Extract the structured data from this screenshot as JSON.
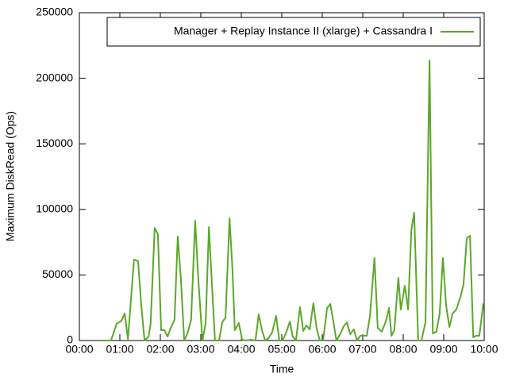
{
  "chart_data": {
    "type": "line",
    "xlabel": "Time",
    "ylabel": "Maximum DiskRead (Ops)",
    "x": [
      0.51,
      0.67,
      0.78,
      0.92,
      1.04,
      1.12,
      1.2,
      1.35,
      1.45,
      1.53,
      1.61,
      1.71,
      1.76,
      1.86,
      1.94,
      2.02,
      2.1,
      2.18,
      2.25,
      2.35,
      2.43,
      2.51,
      2.59,
      2.67,
      2.76,
      2.86,
      2.94,
      3.04,
      3.12,
      3.2,
      3.27,
      3.35,
      3.45,
      3.53,
      3.61,
      3.71,
      3.78,
      3.84,
      3.94,
      4.02,
      4.1,
      4.25,
      4.35,
      4.43,
      4.51,
      4.59,
      4.67,
      4.76,
      4.86,
      4.94,
      5.02,
      5.1,
      5.2,
      5.27,
      5.35,
      5.45,
      5.53,
      5.61,
      5.69,
      5.78,
      5.86,
      5.94,
      6.02,
      6.12,
      6.2,
      6.27,
      6.35,
      6.45,
      6.53,
      6.61,
      6.69,
      6.78,
      6.86,
      6.94,
      7.02,
      7.1,
      7.18,
      7.29,
      7.37,
      7.47,
      7.57,
      7.65,
      7.71,
      7.78,
      7.88,
      7.94,
      8.04,
      8.12,
      8.2,
      8.27,
      8.37,
      8.45,
      8.55,
      8.65,
      8.73,
      8.82,
      8.9,
      8.98,
      9.06,
      9.14,
      9.22,
      9.31,
      9.41,
      9.49,
      9.57,
      9.65,
      9.73,
      9.8,
      9.88,
      9.98
    ],
    "series": [
      {
        "name": "Manager + Replay Instance II (xlarge) + Cassandra I",
        "color": "#5ba829",
        "values": [
          0,
          0,
          0,
          12700,
          15100,
          20600,
          1200,
          61700,
          60500,
          26600,
          0,
          3000,
          12700,
          85900,
          81100,
          7900,
          7900,
          3000,
          9100,
          15700,
          79300,
          46000,
          0,
          5400,
          15700,
          91400,
          46000,
          0,
          13300,
          86500,
          45400,
          0,
          0,
          13900,
          17500,
          93200,
          55100,
          7900,
          13300,
          600,
          0,
          600,
          0,
          20000,
          7900,
          0,
          1800,
          6000,
          18800,
          0,
          0,
          5400,
          14500,
          3000,
          0,
          25400,
          7300,
          11500,
          8500,
          28400,
          9700,
          0,
          0,
          24800,
          27800,
          15100,
          0,
          5400,
          10900,
          13900,
          4800,
          8500,
          0,
          3600,
          3600,
          3600,
          19400,
          62900,
          9700,
          6700,
          14500,
          24800,
          3600,
          7900,
          47800,
          23600,
          41700,
          23600,
          84100,
          97400,
          0,
          0,
          13900,
          213600,
          5400,
          6700,
          20600,
          62900,
          26600,
          10300,
          20600,
          23600,
          32700,
          43000,
          78000,
          79900,
          2400,
          3600,
          3600,
          28400
        ]
      }
    ],
    "xlim": [
      0,
      10
    ],
    "xticks": [
      {
        "value": 0,
        "label": "00:00"
      },
      {
        "value": 1,
        "label": "01:00"
      },
      {
        "value": 2,
        "label": "02:00"
      },
      {
        "value": 3,
        "label": "03:00"
      },
      {
        "value": 4,
        "label": "04:00"
      },
      {
        "value": 5,
        "label": "05:00"
      },
      {
        "value": 6,
        "label": "06:00"
      },
      {
        "value": 7,
        "label": "07:00"
      },
      {
        "value": 8,
        "label": "08:00"
      },
      {
        "value": 9,
        "label": "09:00"
      },
      {
        "value": 10,
        "label": "10:00"
      }
    ],
    "ylim": [
      0,
      250000
    ],
    "yticks": [
      0,
      50000,
      100000,
      150000,
      200000,
      250000
    ],
    "legend": "top-right",
    "grid": false
  }
}
